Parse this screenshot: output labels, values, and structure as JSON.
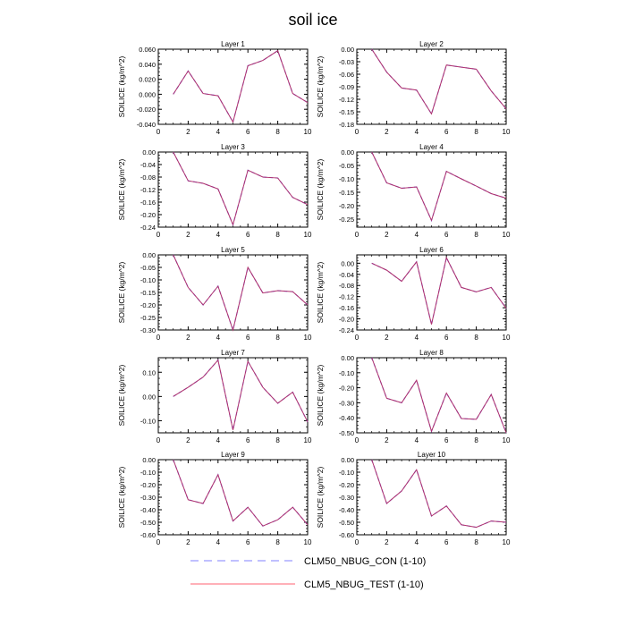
{
  "figure": {
    "title": "soil ice"
  },
  "legend": [
    {
      "name": "CLM50_NBUG_CON (1-10)",
      "color": "#8080ff",
      "style": "dashed"
    },
    {
      "name": "CLM5_NBUG_TEST (1-10)",
      "color": "#ff6070",
      "style": "solid"
    }
  ],
  "chart_data": [
    {
      "type": "line",
      "title": "Layer 1",
      "ylabel": "SOILICE  (kg/m^2)",
      "x": [
        1,
        2,
        3,
        4,
        5,
        6,
        7,
        8,
        9,
        10
      ],
      "xlim": [
        0,
        10
      ],
      "xticks": [
        0,
        2,
        4,
        6,
        8,
        10
      ],
      "ylim": [
        -0.04,
        0.06
      ],
      "yticks": [
        -0.04,
        -0.02,
        0.0,
        0.02,
        0.04,
        0.06
      ],
      "yticklabels": [
        "-0.040",
        "-0.020",
        "0.000",
        "0.020",
        "0.040",
        "0.060"
      ],
      "series": [
        {
          "name": "CLM50_NBUG_CON (1-10)",
          "values": [
            0.0,
            0.031,
            0.001,
            -0.002,
            -0.037,
            0.038,
            0.045,
            0.058,
            0.001,
            -0.011
          ]
        },
        {
          "name": "CLM5_NBUG_TEST (1-10)",
          "values": [
            0.0,
            0.031,
            0.001,
            -0.002,
            -0.037,
            0.038,
            0.045,
            0.058,
            0.001,
            -0.011
          ]
        }
      ]
    },
    {
      "type": "line",
      "title": "Layer 2",
      "ylabel": "SOILICE  (kg/m^2)",
      "x": [
        1,
        2,
        3,
        4,
        5,
        6,
        7,
        8,
        9,
        10
      ],
      "xlim": [
        0,
        10
      ],
      "xticks": [
        0,
        2,
        4,
        6,
        8,
        10
      ],
      "ylim": [
        -0.18,
        0.0
      ],
      "yticks": [
        -0.18,
        -0.15,
        -0.12,
        -0.09,
        -0.06,
        -0.03,
        0.0
      ],
      "yticklabels": [
        "-0.18",
        "-0.15",
        "-0.12",
        "-0.09",
        "-0.06",
        "-0.03",
        "0.00"
      ],
      "series": [
        {
          "name": "CLM50_NBUG_CON (1-10)",
          "values": [
            0.0,
            -0.055,
            -0.093,
            -0.098,
            -0.155,
            -0.038,
            -0.043,
            -0.048,
            -0.1,
            -0.143
          ]
        },
        {
          "name": "CLM5_NBUG_TEST (1-10)",
          "values": [
            0.0,
            -0.055,
            -0.093,
            -0.098,
            -0.155,
            -0.038,
            -0.043,
            -0.048,
            -0.1,
            -0.143
          ]
        }
      ]
    },
    {
      "type": "line",
      "title": "Layer 3",
      "ylabel": "SOILICE  (kg/m^2)",
      "x": [
        1,
        2,
        3,
        4,
        5,
        6,
        7,
        8,
        9,
        10
      ],
      "xlim": [
        0,
        10
      ],
      "xticks": [
        0,
        2,
        4,
        6,
        8,
        10
      ],
      "ylim": [
        -0.24,
        0.0
      ],
      "yticks": [
        -0.24,
        -0.2,
        -0.16,
        -0.12,
        -0.08,
        -0.04,
        0.0
      ],
      "yticklabels": [
        "-0.24",
        "-0.20",
        "-0.16",
        "-0.12",
        "-0.08",
        "-0.04",
        "0.00"
      ],
      "series": [
        {
          "name": "CLM50_NBUG_CON (1-10)",
          "values": [
            0.0,
            -0.092,
            -0.1,
            -0.118,
            -0.232,
            -0.058,
            -0.08,
            -0.083,
            -0.145,
            -0.168
          ]
        },
        {
          "name": "CLM5_NBUG_TEST (1-10)",
          "values": [
            0.0,
            -0.092,
            -0.1,
            -0.118,
            -0.232,
            -0.058,
            -0.08,
            -0.083,
            -0.145,
            -0.168
          ]
        }
      ]
    },
    {
      "type": "line",
      "title": "Layer 4",
      "ylabel": "SOILICE  (kg/m^2)",
      "x": [
        1,
        2,
        3,
        4,
        5,
        6,
        7,
        8,
        9,
        10
      ],
      "xlim": [
        0,
        10
      ],
      "xticks": [
        0,
        2,
        4,
        6,
        8,
        10
      ],
      "ylim": [
        -0.28,
        0.0
      ],
      "yticks": [
        -0.25,
        -0.2,
        -0.15,
        -0.1,
        -0.05,
        0.0
      ],
      "yticklabels": [
        "-0.25",
        "-0.20",
        "-0.15",
        "-0.10",
        "-0.05",
        "0.00"
      ],
      "series": [
        {
          "name": "CLM50_NBUG_CON (1-10)",
          "values": [
            0.0,
            -0.115,
            -0.135,
            -0.13,
            -0.255,
            -0.072,
            -0.1,
            -0.127,
            -0.155,
            -0.172
          ]
        },
        {
          "name": "CLM5_NBUG_TEST (1-10)",
          "values": [
            0.0,
            -0.115,
            -0.135,
            -0.13,
            -0.255,
            -0.072,
            -0.1,
            -0.127,
            -0.155,
            -0.172
          ]
        }
      ]
    },
    {
      "type": "line",
      "title": "Layer 5",
      "ylabel": "SOILICE  (kg/m^2)",
      "x": [
        1,
        2,
        3,
        4,
        5,
        6,
        7,
        8,
        9,
        10
      ],
      "xlim": [
        0,
        10
      ],
      "xticks": [
        0,
        2,
        4,
        6,
        8,
        10
      ],
      "ylim": [
        -0.3,
        0.0
      ],
      "yticks": [
        -0.3,
        -0.25,
        -0.2,
        -0.15,
        -0.1,
        -0.05,
        0.0
      ],
      "yticklabels": [
        "-0.30",
        "-0.25",
        "-0.20",
        "-0.15",
        "-0.10",
        "-0.05",
        "0.00"
      ],
      "series": [
        {
          "name": "CLM50_NBUG_CON (1-10)",
          "values": [
            0.0,
            -0.13,
            -0.2,
            -0.125,
            -0.3,
            -0.05,
            -0.152,
            -0.143,
            -0.147,
            -0.2
          ]
        },
        {
          "name": "CLM5_NBUG_TEST (1-10)",
          "values": [
            0.0,
            -0.13,
            -0.2,
            -0.125,
            -0.3,
            -0.05,
            -0.152,
            -0.143,
            -0.147,
            -0.2
          ]
        }
      ]
    },
    {
      "type": "line",
      "title": "Layer 6",
      "ylabel": "SOILICE  (kg/m^2)",
      "x": [
        1,
        2,
        3,
        4,
        5,
        6,
        7,
        8,
        9,
        10
      ],
      "xlim": [
        0,
        10
      ],
      "xticks": [
        0,
        2,
        4,
        6,
        8,
        10
      ],
      "ylim": [
        -0.24,
        0.03
      ],
      "yticks": [
        -0.24,
        -0.2,
        -0.16,
        -0.12,
        -0.08,
        -0.04,
        0.0
      ],
      "yticklabels": [
        "-0.24",
        "-0.20",
        "-0.16",
        "-0.12",
        "-0.08",
        "-0.04",
        "0.00"
      ],
      "series": [
        {
          "name": "CLM50_NBUG_CON (1-10)",
          "values": [
            0.0,
            -0.025,
            -0.065,
            0.005,
            -0.22,
            0.02,
            -0.087,
            -0.103,
            -0.087,
            -0.162
          ]
        },
        {
          "name": "CLM5_NBUG_TEST (1-10)",
          "values": [
            0.0,
            -0.025,
            -0.065,
            0.005,
            -0.22,
            0.02,
            -0.087,
            -0.103,
            -0.087,
            -0.162
          ]
        }
      ]
    },
    {
      "type": "line",
      "title": "Layer 7",
      "ylabel": "SOILICE  (kg/m^2)",
      "x": [
        1,
        2,
        3,
        4,
        5,
        6,
        7,
        8,
        9,
        10
      ],
      "xlim": [
        0,
        10
      ],
      "xticks": [
        0,
        2,
        4,
        6,
        8,
        10
      ],
      "ylim": [
        -0.15,
        0.16
      ],
      "yticks": [
        -0.1,
        0.0,
        0.1
      ],
      "yticklabels": [
        "-0.10",
        "0.00",
        "0.10"
      ],
      "series": [
        {
          "name": "CLM50_NBUG_CON (1-10)",
          "values": [
            0.0,
            0.038,
            0.08,
            0.15,
            -0.138,
            0.145,
            0.038,
            -0.028,
            0.018,
            -0.105
          ]
        },
        {
          "name": "CLM5_NBUG_TEST (1-10)",
          "values": [
            0.0,
            0.038,
            0.08,
            0.15,
            -0.138,
            0.145,
            0.038,
            -0.028,
            0.018,
            -0.105
          ]
        }
      ]
    },
    {
      "type": "line",
      "title": "Layer 8",
      "ylabel": "SOILICE  (kg/m^2)",
      "x": [
        1,
        2,
        3,
        4,
        5,
        6,
        7,
        8,
        9,
        10
      ],
      "xlim": [
        0,
        10
      ],
      "xticks": [
        0,
        2,
        4,
        6,
        8,
        10
      ],
      "ylim": [
        -0.5,
        0.0
      ],
      "yticks": [
        -0.5,
        -0.4,
        -0.3,
        -0.2,
        -0.1,
        0.0
      ],
      "yticklabels": [
        "-0.50",
        "-0.40",
        "-0.30",
        "-0.20",
        "-0.10",
        "0.00"
      ],
      "series": [
        {
          "name": "CLM50_NBUG_CON (1-10)",
          "values": [
            0.0,
            -0.27,
            -0.3,
            -0.15,
            -0.49,
            -0.235,
            -0.405,
            -0.41,
            -0.245,
            -0.5
          ]
        },
        {
          "name": "CLM5_NBUG_TEST (1-10)",
          "values": [
            0.0,
            -0.27,
            -0.3,
            -0.15,
            -0.49,
            -0.235,
            -0.405,
            -0.41,
            -0.245,
            -0.5
          ]
        }
      ]
    },
    {
      "type": "line",
      "title": "Layer 9",
      "ylabel": "SOILICE  (kg/m^2)",
      "x": [
        1,
        2,
        3,
        4,
        5,
        6,
        7,
        8,
        9,
        10
      ],
      "xlim": [
        0,
        10
      ],
      "xticks": [
        0,
        2,
        4,
        6,
        8,
        10
      ],
      "ylim": [
        -0.6,
        0.0
      ],
      "yticks": [
        -0.6,
        -0.5,
        -0.4,
        -0.3,
        -0.2,
        -0.1,
        0.0
      ],
      "yticklabels": [
        "-0.60",
        "-0.50",
        "-0.40",
        "-0.30",
        "-0.20",
        "-0.10",
        "0.00"
      ],
      "series": [
        {
          "name": "CLM50_NBUG_CON (1-10)",
          "values": [
            0.0,
            -0.32,
            -0.35,
            -0.12,
            -0.49,
            -0.38,
            -0.53,
            -0.48,
            -0.38,
            -0.52
          ]
        },
        {
          "name": "CLM5_NBUG_TEST (1-10)",
          "values": [
            0.0,
            -0.32,
            -0.35,
            -0.12,
            -0.49,
            -0.38,
            -0.53,
            -0.48,
            -0.38,
            -0.52
          ]
        }
      ]
    },
    {
      "type": "line",
      "title": "Layer 10",
      "ylabel": "SOILICE  (kg/m^2)",
      "x": [
        1,
        2,
        3,
        4,
        5,
        6,
        7,
        8,
        9,
        10
      ],
      "xlim": [
        0,
        10
      ],
      "xticks": [
        0,
        2,
        4,
        6,
        8,
        10
      ],
      "ylim": [
        -0.6,
        0.0
      ],
      "yticks": [
        -0.6,
        -0.5,
        -0.4,
        -0.3,
        -0.2,
        -0.1,
        0.0
      ],
      "yticklabels": [
        "-0.60",
        "-0.50",
        "-0.40",
        "-0.30",
        "-0.20",
        "-0.10",
        "0.00"
      ],
      "series": [
        {
          "name": "CLM50_NBUG_CON (1-10)",
          "values": [
            0.0,
            -0.35,
            -0.25,
            -0.08,
            -0.45,
            -0.37,
            -0.52,
            -0.54,
            -0.49,
            -0.5
          ]
        },
        {
          "name": "CLM5_NBUG_TEST (1-10)",
          "values": [
            0.0,
            -0.35,
            -0.25,
            -0.08,
            -0.45,
            -0.37,
            -0.52,
            -0.54,
            -0.49,
            -0.5
          ]
        }
      ]
    }
  ]
}
